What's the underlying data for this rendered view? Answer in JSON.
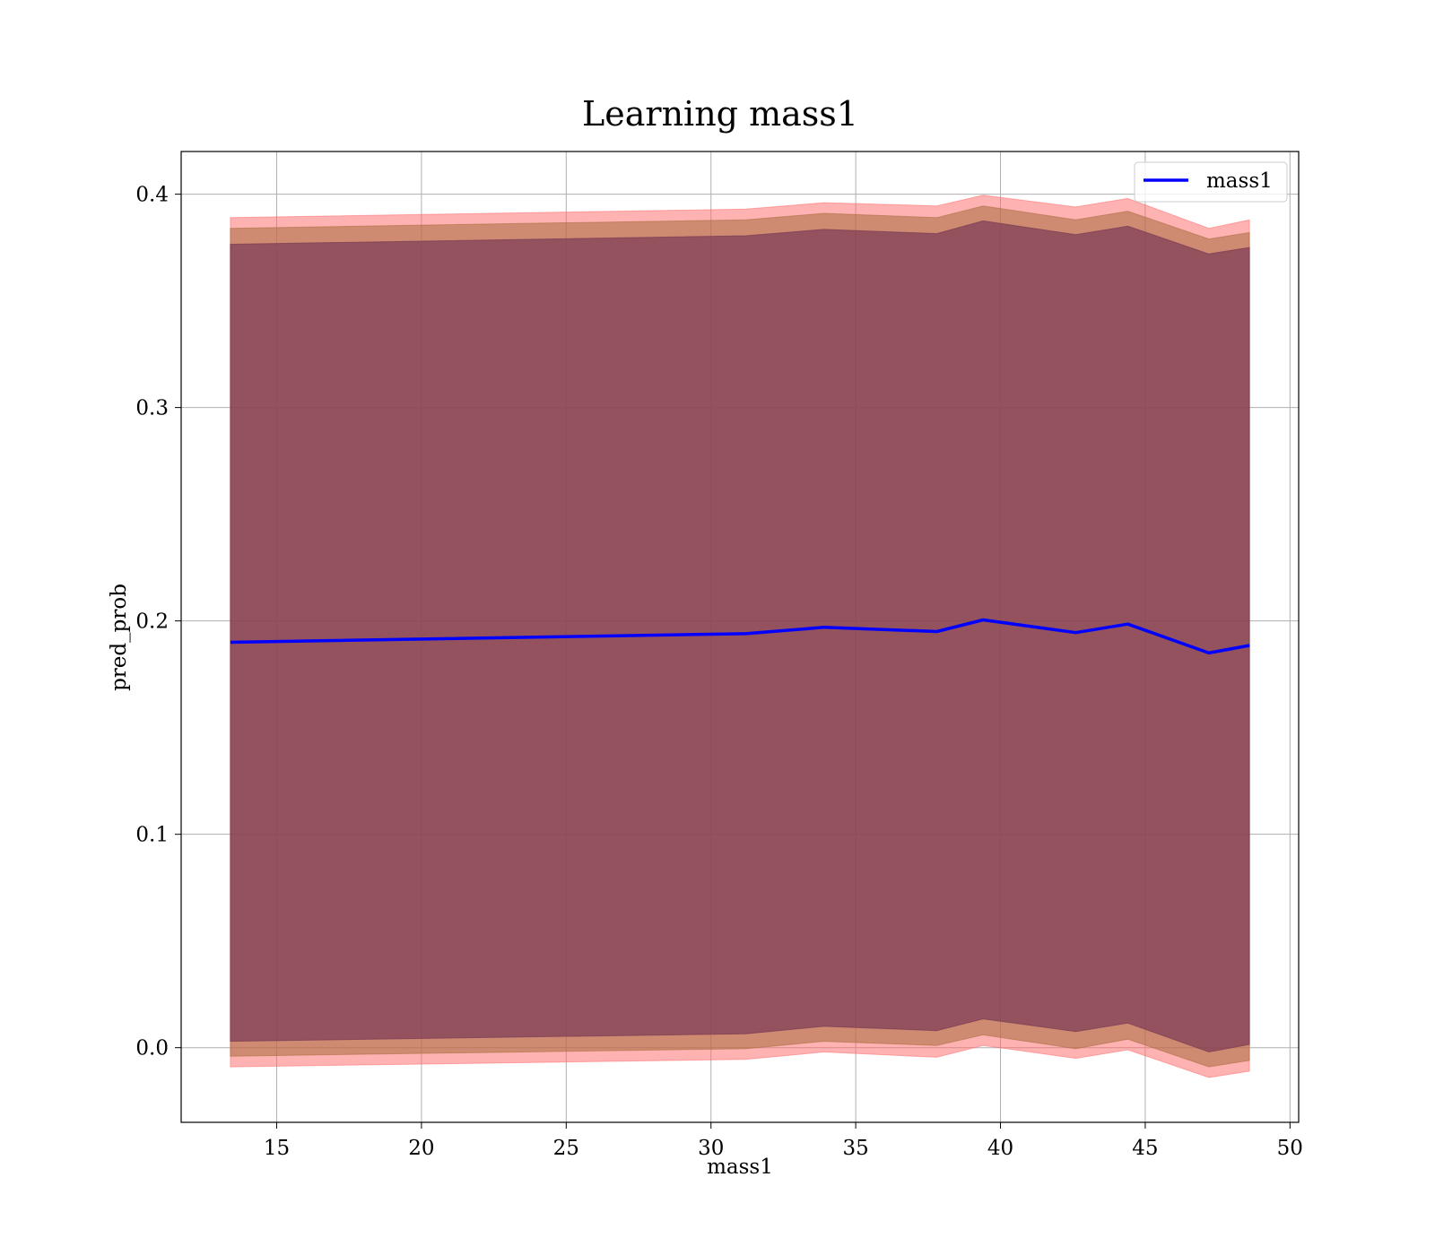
{
  "chart_data": {
    "type": "area",
    "title": "Learning mass1",
    "xlabel": "mass1",
    "ylabel": "pred_prob",
    "xlim": [
      11.7,
      50.3
    ],
    "ylim": [
      -0.035,
      0.42
    ],
    "xticks": [
      15,
      20,
      25,
      30,
      35,
      40,
      45,
      50
    ],
    "yticks": [
      0.0,
      0.1,
      0.2,
      0.3,
      0.4
    ],
    "ytick_labels": [
      "0.0",
      "0.1",
      "0.2",
      "0.3",
      "0.4"
    ],
    "grid": true,
    "legend": {
      "position": "top-right",
      "entries": [
        "mass1"
      ]
    },
    "x": [
      13.4,
      31.2,
      33.9,
      37.8,
      39.4,
      42.6,
      44.4,
      47.2,
      48.6
    ],
    "series": [
      {
        "name": "mass1",
        "color": "#0000ff",
        "values": [
          0.19,
          0.194,
          0.197,
          0.195,
          0.2005,
          0.1945,
          0.1985,
          0.185,
          0.1885
        ]
      }
    ],
    "bands": [
      {
        "color": "#ff6666",
        "opacity": 0.5,
        "upper": [
          0.389,
          0.393,
          0.396,
          0.3945,
          0.3995,
          0.394,
          0.398,
          0.384,
          0.388
        ],
        "lower": [
          -0.009,
          -0.0055,
          -0.002,
          -0.0045,
          0.001,
          -0.005,
          -0.001,
          -0.014,
          -0.011
        ]
      },
      {
        "color": "#a86b3c",
        "opacity": 0.55,
        "upper": [
          0.384,
          0.388,
          0.391,
          0.389,
          0.3945,
          0.388,
          0.392,
          0.379,
          0.382
        ],
        "lower": [
          -0.004,
          -0.0005,
          0.003,
          0.001,
          0.006,
          -0.0005,
          0.004,
          -0.009,
          -0.006
        ]
      },
      {
        "color": "#7b3c56",
        "opacity": 0.72,
        "upper": [
          0.3765,
          0.3805,
          0.3835,
          0.3815,
          0.3875,
          0.381,
          0.385,
          0.372,
          0.375
        ],
        "lower": [
          0.003,
          0.0065,
          0.01,
          0.008,
          0.0135,
          0.0075,
          0.0115,
          -0.002,
          0.0015
        ]
      }
    ]
  }
}
